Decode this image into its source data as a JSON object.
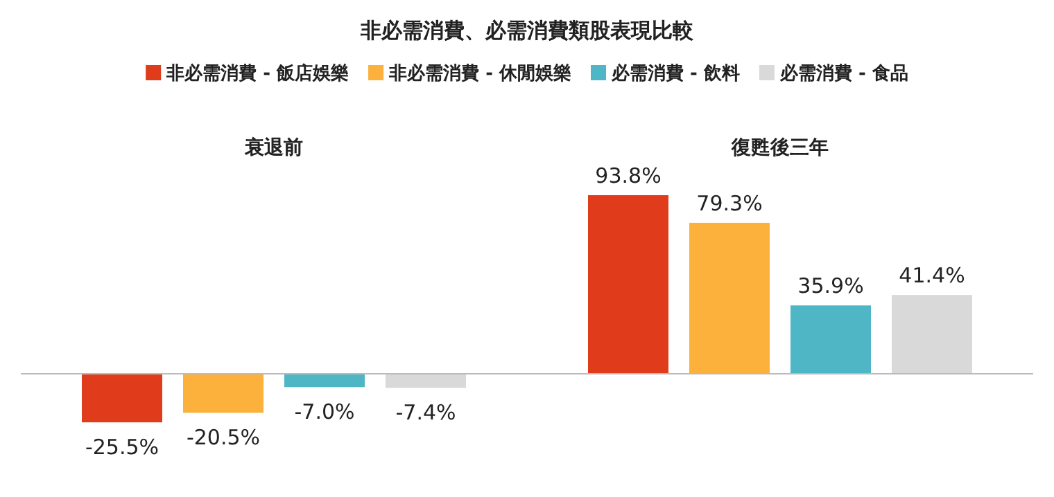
{
  "chart_data": {
    "type": "bar",
    "title": "非必需消費、必需消費類股表現比較",
    "categories": [
      "衰退前",
      "復甦後三年"
    ],
    "series": [
      {
        "name": "非必需消費 - 飯店娛樂",
        "color": "#e03c1c",
        "values": [
          -25.5,
          93.8
        ],
        "value_labels": [
          "-25.5%",
          "93.8%"
        ]
      },
      {
        "name": "非必需消費 - 休閒娛樂",
        "color": "#fbb13c",
        "values": [
          -20.5,
          79.3
        ],
        "value_labels": [
          "-20.5%",
          "79.3%"
        ]
      },
      {
        "name": "必需消費 - 飲料",
        "color": "#4fb6c6",
        "values": [
          -7.0,
          35.9
        ],
        "value_labels": [
          "-7.0%",
          "35.9%"
        ]
      },
      {
        "name": "必需消費 - 食品",
        "color": "#d9d9d9",
        "values": [
          -7.4,
          41.4
        ],
        "value_labels": [
          "-7.4%",
          "41.4%"
        ]
      }
    ],
    "legend": "top"
  }
}
